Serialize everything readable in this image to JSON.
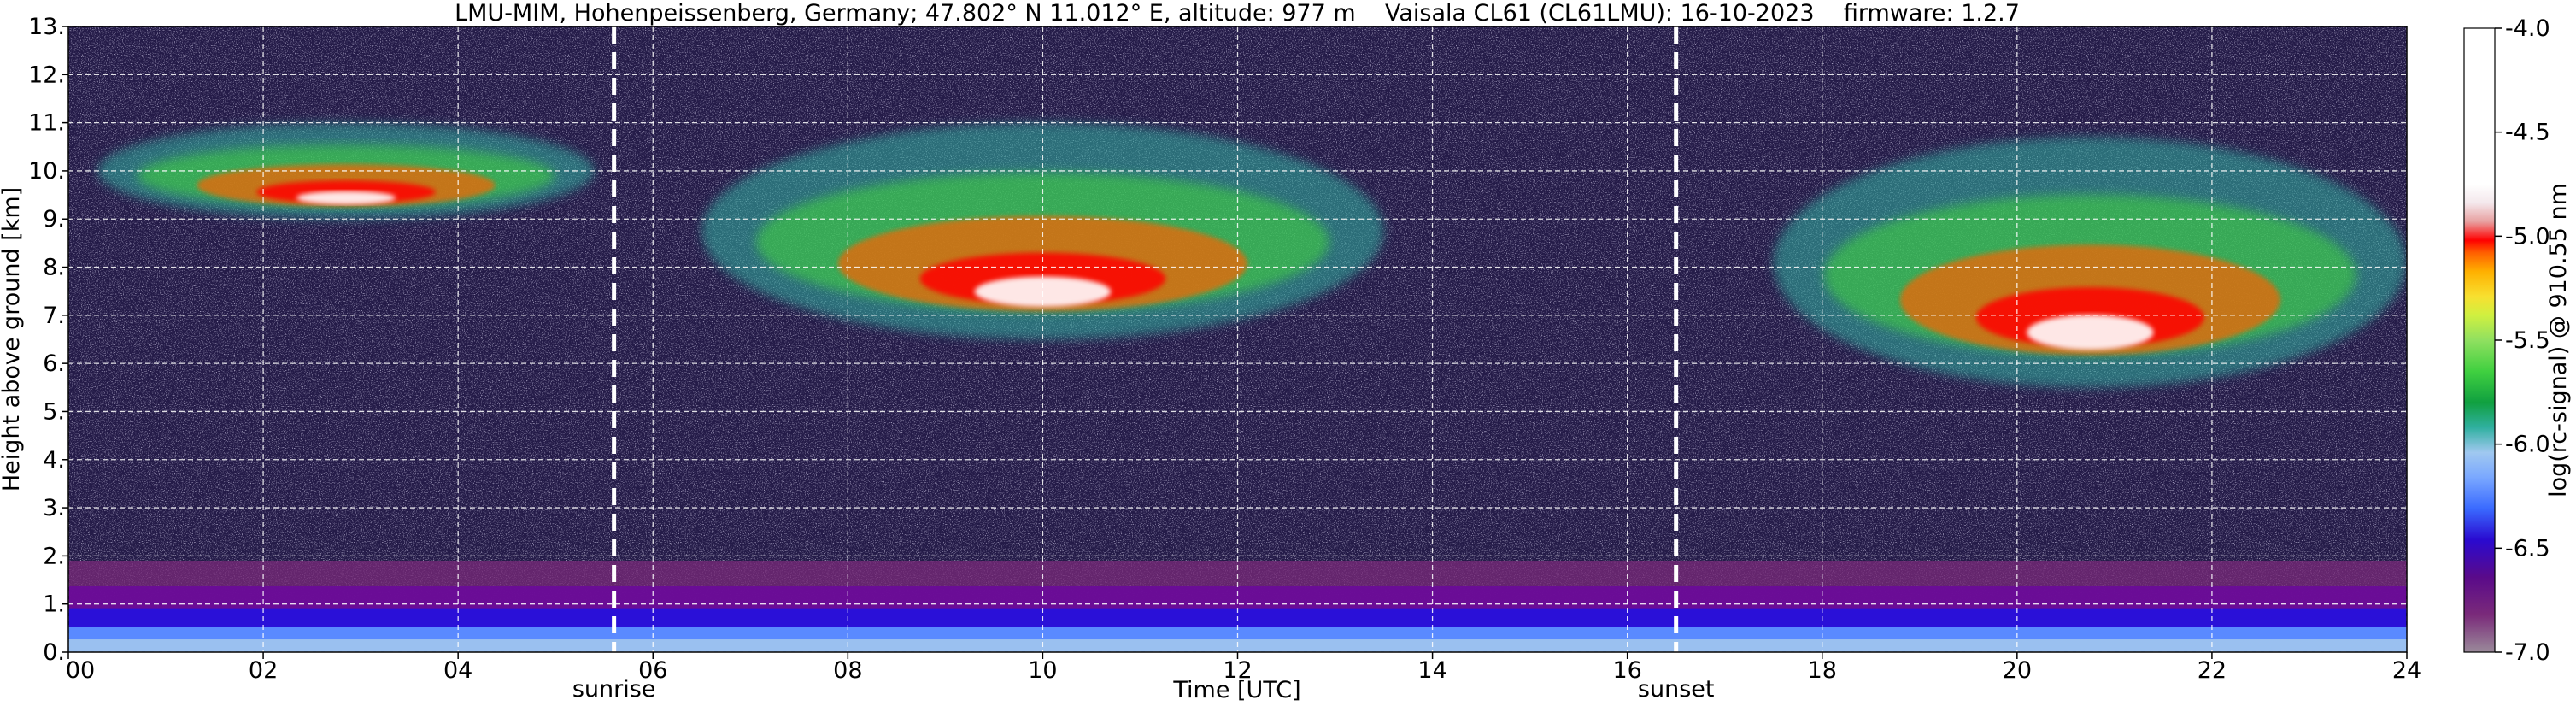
{
  "chart_data": {
    "type": "heatmap",
    "title": "LMU-MIM, Hohenpeissenberg, Germany; 47.802° N 11.012° E, altitude: 977 m    Vaisala CL61 (CL61LMU): 16-10-2023    firmware: 1.2.7",
    "xlabel": "Time [UTC]",
    "ylabel": "Height above ground [km]",
    "colorbar_label": "log(rc-signal) @ 910.55 nm",
    "xlim": [
      0,
      24
    ],
    "ylim": [
      0,
      13
    ],
    "clim": [
      -7.0,
      -4.0
    ],
    "grid": true,
    "x_ticks": [
      0,
      2,
      4,
      6,
      8,
      10,
      12,
      14,
      16,
      18,
      20,
      22,
      24
    ],
    "x_tick_labels": [
      "00",
      "02",
      "04",
      "06",
      "08",
      "10",
      "12",
      "14",
      "16",
      "18",
      "20",
      "22",
      "24"
    ],
    "y_ticks": [
      0,
      1,
      2,
      3,
      4,
      5,
      6,
      7,
      8,
      9,
      10,
      11,
      12,
      13
    ],
    "y_tick_labels": [
      "0.",
      "1.",
      "2.",
      "3.",
      "4.",
      "5.",
      "6.",
      "7.",
      "8.",
      "9.",
      "10.",
      "11.",
      "12.",
      "13."
    ],
    "colorbar_ticks": [
      -7.0,
      -6.5,
      -6.0,
      -5.5,
      -5.0,
      -4.5,
      -4.0
    ],
    "colorbar_tick_labels": [
      "-7.0",
      "-6.5",
      "-6.0",
      "-5.5",
      "-5.0",
      "-4.5",
      "-4.0"
    ],
    "colorbar_colors": [
      "#9a8a9a",
      "#7a2a7a",
      "#5a0a8a",
      "#2a0ad0",
      "#3a6aff",
      "#7aa8ff",
      "#a0c8f0",
      "#30b0a0",
      "#10a040",
      "#40d040",
      "#90e060",
      "#d0f040",
      "#f8e030",
      "#ffb000",
      "#ff6000",
      "#ff0000",
      "#f0b0b0",
      "#ffffff"
    ],
    "annotations": [
      {
        "label": "sunrise",
        "x": 5.6
      },
      {
        "label": "sunset",
        "x": 16.5
      }
    ],
    "features": [
      {
        "kind": "boundary layer",
        "x_range": [
          0,
          24
        ],
        "height_range": [
          0,
          1.9
        ]
      },
      {
        "kind": "cirrus",
        "x_range": [
          0.3,
          5.4
        ],
        "height_range": [
          9.0,
          11.0
        ]
      },
      {
        "kind": "cirrus",
        "x_range": [
          6.5,
          13.5
        ],
        "height_range": [
          6.5,
          11.0
        ]
      },
      {
        "kind": "cloud",
        "x_range": [
          17.5,
          24
        ],
        "height_range": [
          5.5,
          10.7
        ]
      }
    ]
  }
}
